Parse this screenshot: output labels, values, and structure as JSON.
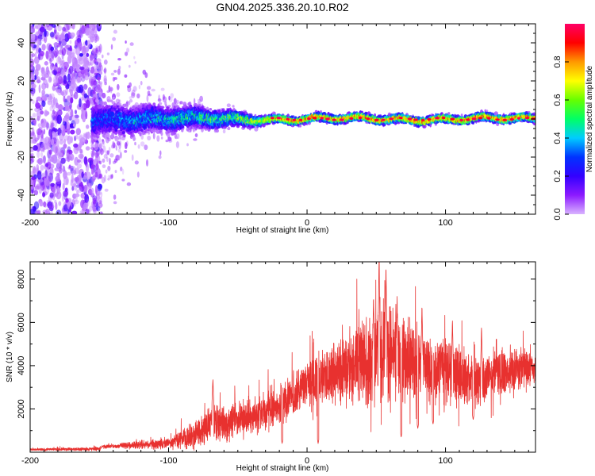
{
  "title": "GN04.2025.336.20.10.R02",
  "colors": {
    "snr_line": "#e8312f",
    "core": "#ff1a1a",
    "background": "#ffffff",
    "colormap": [
      "#d9b3ff",
      "#8c1aff",
      "#3300ff",
      "#0033ff",
      "#00ccff",
      "#00ff66",
      "#66ff00",
      "#ffff00",
      "#ff9900",
      "#ff0000",
      "#ff0066"
    ]
  },
  "chart_data": [
    {
      "type": "heatmap",
      "name": "spectrogram",
      "xlabel": "Height of straight line (km)",
      "ylabel": "Frequency (Hz)",
      "xlim": [
        -200,
        165
      ],
      "ylim": [
        -50,
        50
      ],
      "xticks": [
        -200,
        -100,
        0,
        100
      ],
      "yticks": [
        -40,
        -20,
        0,
        20,
        40
      ],
      "colorbar": {
        "label": "Normalized spectral amplitude",
        "range": [
          0,
          1
        ],
        "ticks": [
          0.0,
          0.2,
          0.4,
          0.6,
          0.8
        ]
      },
      "noise_region": [
        -200,
        -155
      ],
      "signal_start": -155,
      "band_halfwidth_hz": [
        [
          -155,
          8
        ],
        [
          -100,
          6
        ],
        [
          -50,
          4
        ],
        [
          -30,
          2
        ],
        [
          0,
          2
        ],
        [
          100,
          2
        ],
        [
          165,
          2
        ]
      ],
      "peak_amplitude": [
        [
          -155,
          0.3
        ],
        [
          -100,
          0.45
        ],
        [
          -50,
          0.6
        ],
        [
          -25,
          0.9
        ],
        [
          0,
          0.95
        ],
        [
          165,
          0.95
        ]
      ]
    },
    {
      "type": "line",
      "name": "snr",
      "xlabel": "Height of straight line (km)",
      "ylabel": "SNR (10 * v/v)",
      "xlim": [
        -200,
        165
      ],
      "ylim": [
        0,
        8800
      ],
      "xticks": [
        -200,
        -100,
        0,
        100
      ],
      "yticks": [
        2000,
        4000,
        6000,
        8000
      ],
      "envelope_mean": [
        [
          -200,
          120
        ],
        [
          -150,
          150
        ],
        [
          -148,
          250
        ],
        [
          -100,
          400
        ],
        [
          -80,
          800
        ],
        [
          -70,
          1300
        ],
        [
          -50,
          1400
        ],
        [
          -30,
          1900
        ],
        [
          -15,
          2400
        ],
        [
          0,
          3200
        ],
        [
          20,
          3700
        ],
        [
          40,
          4200
        ],
        [
          55,
          4700
        ],
        [
          70,
          4400
        ],
        [
          90,
          3900
        ],
        [
          110,
          3600
        ],
        [
          125,
          3300
        ],
        [
          140,
          3600
        ],
        [
          155,
          3900
        ],
        [
          165,
          3800
        ]
      ],
      "envelope_spread": [
        [
          -200,
          60
        ],
        [
          -150,
          100
        ],
        [
          -100,
          300
        ],
        [
          -70,
          1000
        ],
        [
          -40,
          1000
        ],
        [
          0,
          1200
        ],
        [
          40,
          2200
        ],
        [
          55,
          2800
        ],
        [
          80,
          2000
        ],
        [
          110,
          1600
        ],
        [
          165,
          900
        ]
      ],
      "notable_peaks": [
        [
          -68,
          3400
        ],
        [
          48,
          7200
        ],
        [
          52,
          8800
        ],
        [
          57,
          8600
        ],
        [
          65,
          7000
        ],
        [
          83,
          6800
        ],
        [
          105,
          6100
        ],
        [
          126,
          5800
        ]
      ],
      "notable_dips": [
        [
          -18,
          400
        ],
        [
          8,
          400
        ],
        [
          68,
          700
        ],
        [
          80,
          1100
        ],
        [
          91,
          1300
        ],
        [
          120,
          1500
        ]
      ]
    }
  ]
}
